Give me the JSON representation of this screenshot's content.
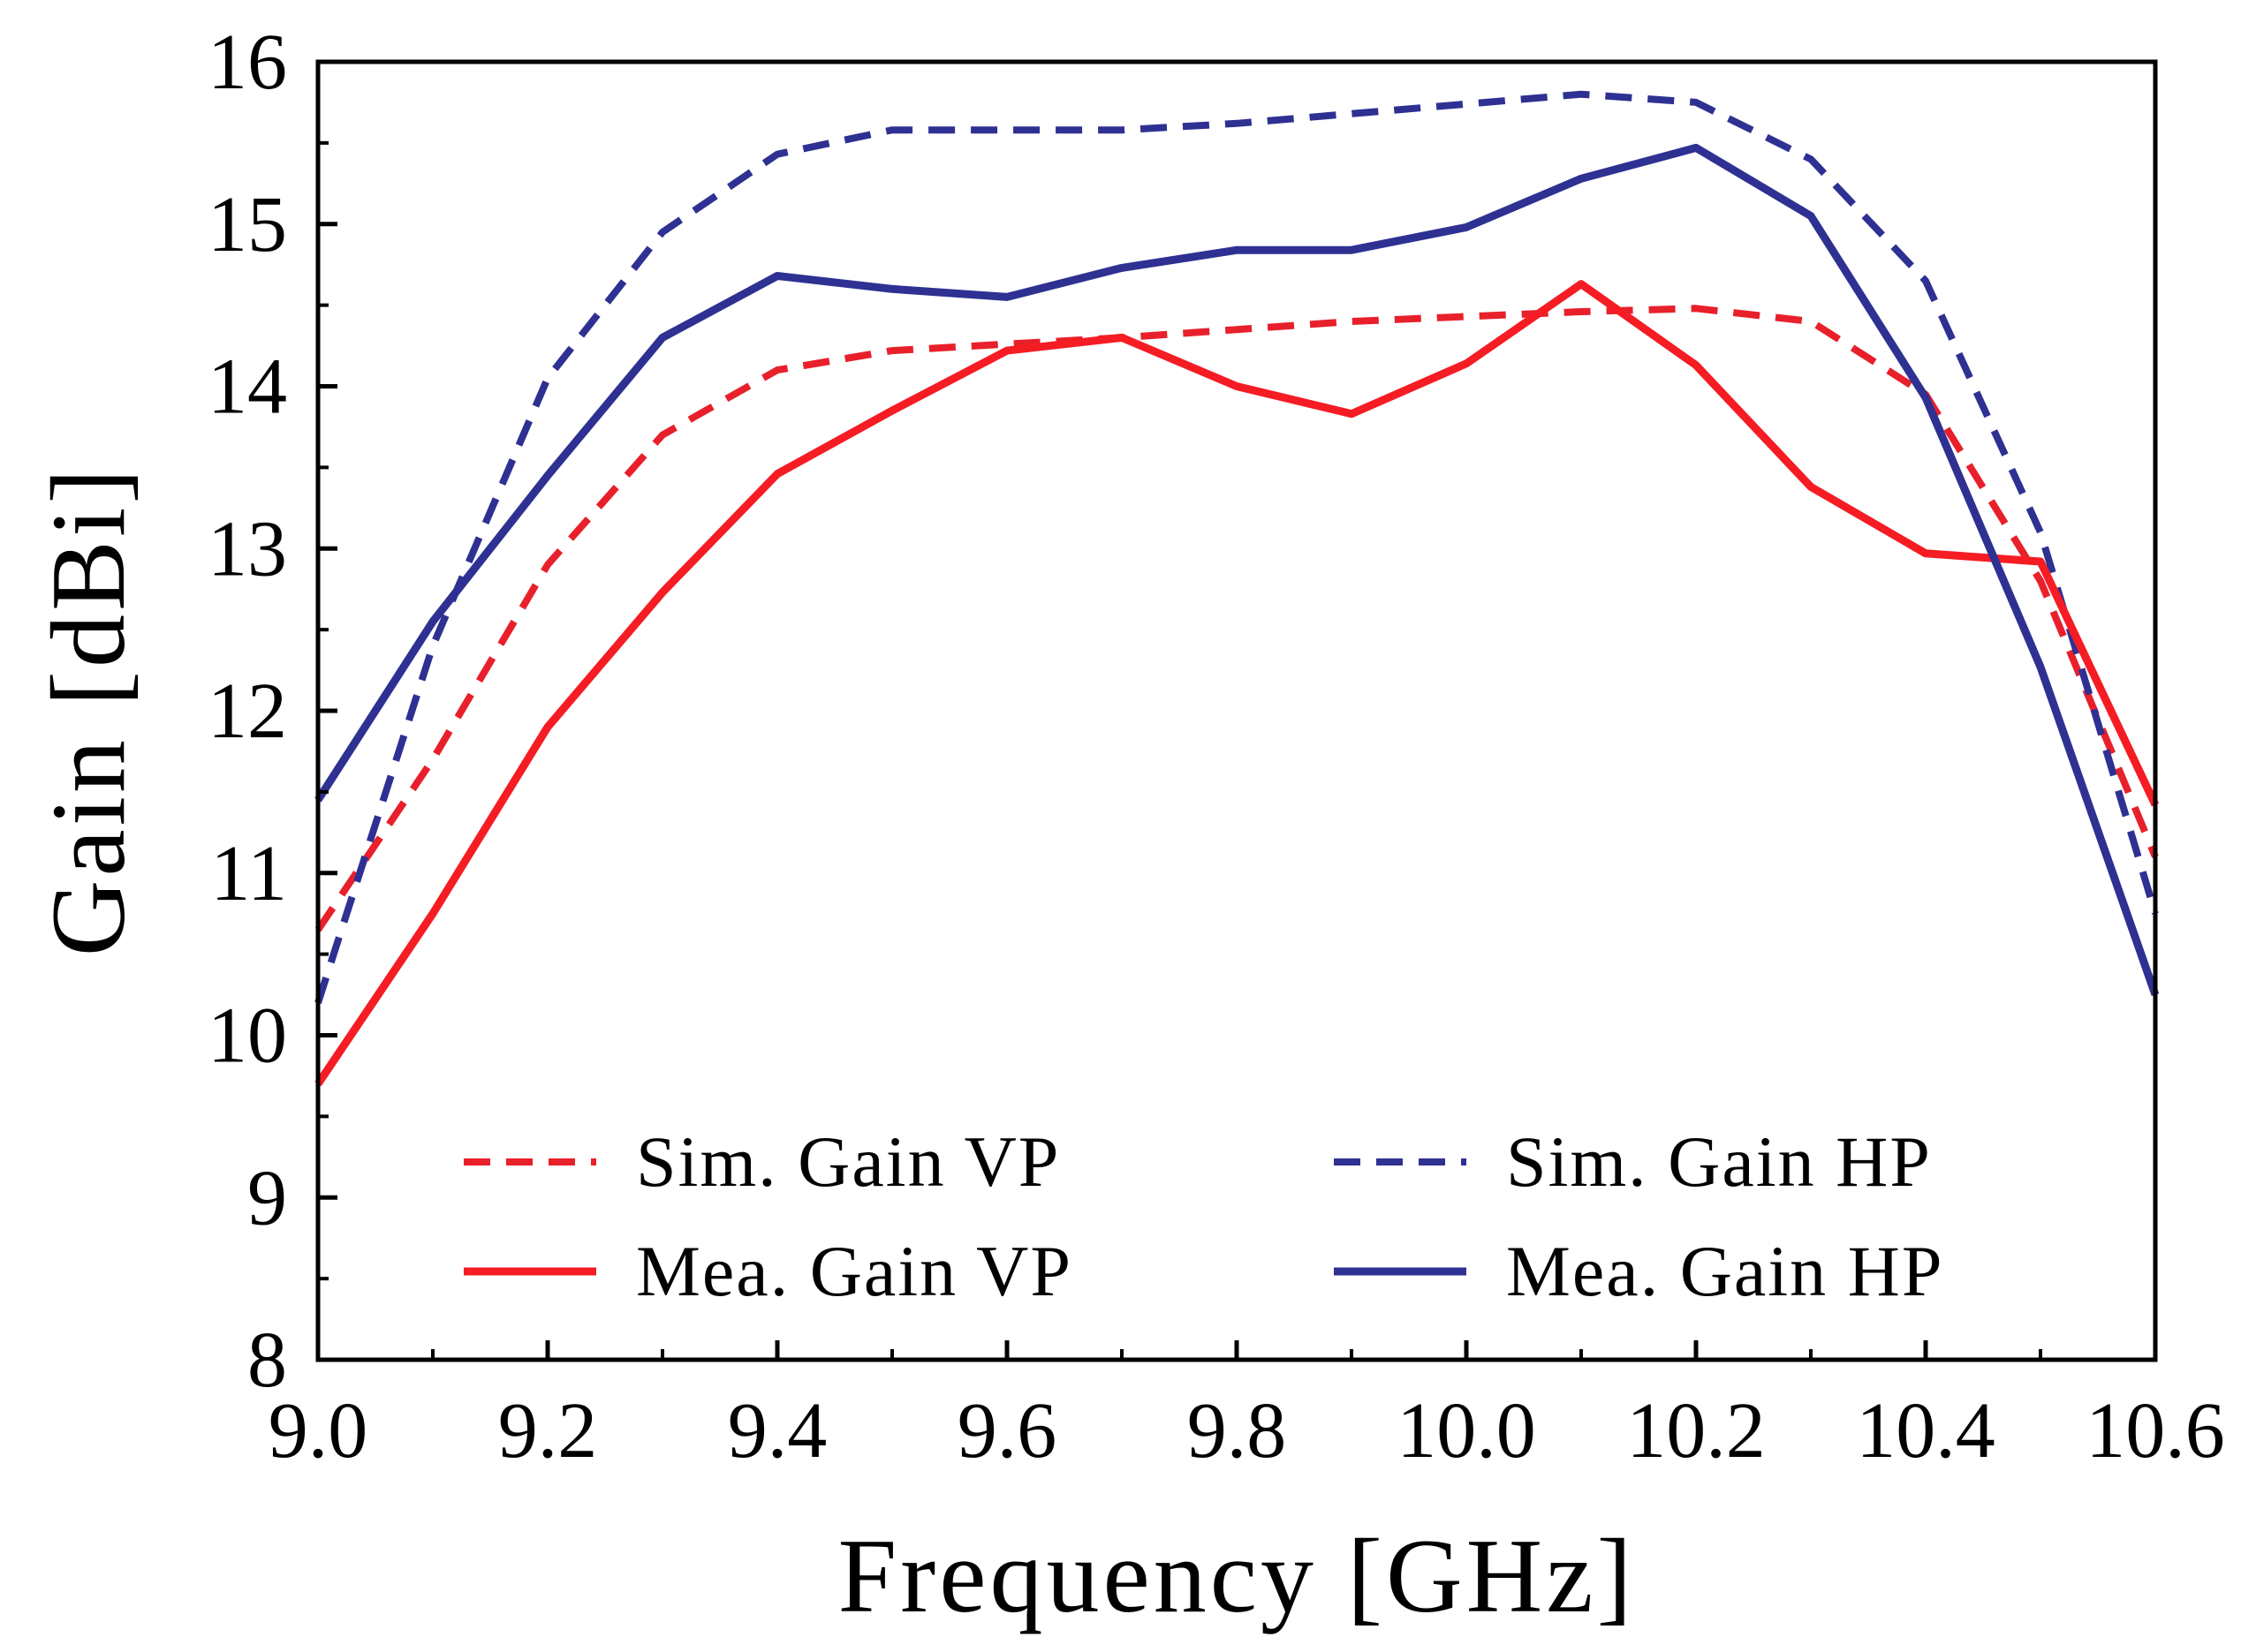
{
  "chart_data": {
    "type": "line",
    "title": "",
    "xlabel": "Frequency [GHz]",
    "ylabel": "Gain [dBi]",
    "xlim": [
      9.0,
      10.6
    ],
    "ylim": [
      8,
      16
    ],
    "xticks": [
      "9.0",
      "9.2",
      "9.4",
      "9.6",
      "9.8",
      "10.0",
      "10.2",
      "10.4",
      "10.6"
    ],
    "yticks": [
      "8",
      "9",
      "10",
      "11",
      "12",
      "13",
      "14",
      "15",
      "16"
    ],
    "x": [
      9.0,
      9.1,
      9.2,
      9.3,
      9.4,
      9.5,
      9.6,
      9.7,
      9.8,
      9.9,
      10.0,
      10.1,
      10.2,
      10.3,
      10.4,
      10.5,
      10.6
    ],
    "grid": false,
    "legend_position": "bottom-center",
    "series": [
      {
        "name": "Sim. Gain VP",
        "color": "#e8202b",
        "style": "dashed",
        "values": [
          10.65,
          11.7,
          12.9,
          13.7,
          14.1,
          14.22,
          14.26,
          14.3,
          14.35,
          14.4,
          14.43,
          14.46,
          14.48,
          14.4,
          13.95,
          12.8,
          11.1
        ]
      },
      {
        "name": "Sim. Gain HP",
        "color": "#2e3192",
        "style": "dashed",
        "values": [
          10.2,
          12.4,
          14.05,
          14.95,
          15.43,
          15.58,
          15.58,
          15.58,
          15.62,
          15.68,
          15.74,
          15.8,
          15.75,
          15.4,
          14.65,
          13.1,
          10.75
        ]
      },
      {
        "name": "Mea. Gain VP",
        "color": "#f51c24",
        "style": "solid",
        "values": [
          9.7,
          10.75,
          11.9,
          12.73,
          13.46,
          13.85,
          14.22,
          14.3,
          14.0,
          13.83,
          14.14,
          14.63,
          14.13,
          13.38,
          12.97,
          12.92,
          11.42
        ]
      },
      {
        "name": "Mea. Gain HP",
        "color": "#2e3192",
        "style": "solid",
        "values": [
          11.45,
          12.55,
          13.45,
          14.3,
          14.68,
          14.6,
          14.55,
          14.73,
          14.84,
          14.84,
          14.98,
          15.28,
          15.47,
          15.05,
          13.93,
          12.27,
          10.25
        ]
      }
    ]
  }
}
